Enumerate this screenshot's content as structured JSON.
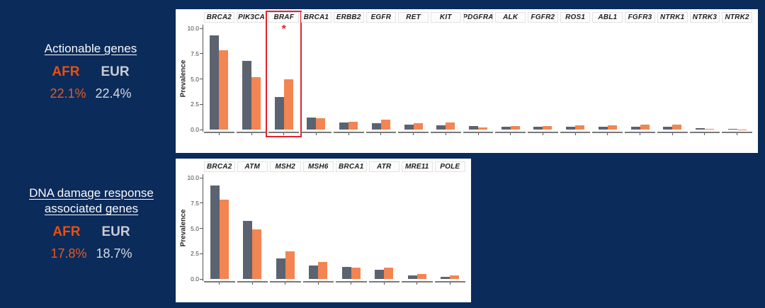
{
  "page": {
    "background": "#0B2B5B"
  },
  "colors": {
    "eur_bar": "#5C6370",
    "afr_bar": "#F28552",
    "afr_text": "#ED4E0D",
    "eur_text": "#C9CCD2",
    "highlight_red": "#E3232B"
  },
  "left_panel": {
    "actionable": {
      "title": "Actionable genes",
      "afr_label": "AFR",
      "eur_label": "EUR",
      "afr_value": "22.1%",
      "eur_value": "22.4%"
    },
    "ddr": {
      "title_line1": "DNA damage response",
      "title_line2": "associated genes",
      "afr_label": "AFR",
      "eur_label": "EUR",
      "afr_value": "17.8%",
      "eur_value": "18.7%"
    }
  },
  "chart_data": [
    {
      "id": "actionable-genes-chart",
      "type": "bar",
      "faceted": true,
      "ylabel": "Prevalence",
      "ylim": [
        0,
        10.3
      ],
      "yticks": [
        0,
        2.5,
        5,
        7.5,
        10
      ],
      "ytick_labels": [
        "0.0",
        "2.5",
        "5.0",
        "7.5",
        "10.0"
      ],
      "grid": false,
      "legend": "none",
      "categories": [
        "BRCA2",
        "PIK3CA",
        "BRAF",
        "BRCA1",
        "ERBB2",
        "EGFR",
        "RET",
        "KIT",
        "PDGFRA",
        "ALK",
        "FGFR2",
        "ROS1",
        "ABL1",
        "FGFR3",
        "NTRK1",
        "NTRK3",
        "NTRK2"
      ],
      "series": [
        {
          "name": "EUR",
          "color": "#5C6370",
          "values": [
            9.3,
            6.8,
            3.2,
            1.2,
            0.7,
            0.6,
            0.5,
            0.45,
            0.35,
            0.3,
            0.3,
            0.25,
            0.25,
            0.25,
            0.25,
            0.15,
            0.05
          ]
        },
        {
          "name": "AFR",
          "color": "#F28552",
          "values": [
            7.8,
            5.2,
            5.0,
            1.1,
            0.8,
            1.0,
            0.65,
            0.7,
            0.2,
            0.35,
            0.35,
            0.4,
            0.45,
            0.5,
            0.5,
            0.1,
            0.03
          ]
        }
      ],
      "highlight": {
        "gene": "BRAF",
        "marker": "*",
        "box_color": "#E3232B"
      }
    },
    {
      "id": "ddr-genes-chart",
      "type": "bar",
      "faceted": true,
      "ylabel": "Prevalence",
      "ylim": [
        0,
        10.3
      ],
      "yticks": [
        0,
        2.5,
        5,
        7.5,
        10
      ],
      "ytick_labels": [
        "0.0",
        "2.5",
        "5.0",
        "7.5",
        "10.0"
      ],
      "grid": false,
      "legend": "none",
      "categories": [
        "BRCA2",
        "ATM",
        "MSH2",
        "MSH6",
        "BRCA1",
        "ATR",
        "MRE11",
        "POLE"
      ],
      "series": [
        {
          "name": "EUR",
          "color": "#5C6370",
          "values": [
            9.2,
            5.7,
            2.0,
            1.35,
            1.2,
            0.9,
            0.35,
            0.2
          ]
        },
        {
          "name": "AFR",
          "color": "#F28552",
          "values": [
            7.8,
            4.9,
            2.7,
            1.7,
            1.1,
            1.1,
            0.5,
            0.35
          ]
        }
      ],
      "highlight": null
    }
  ]
}
